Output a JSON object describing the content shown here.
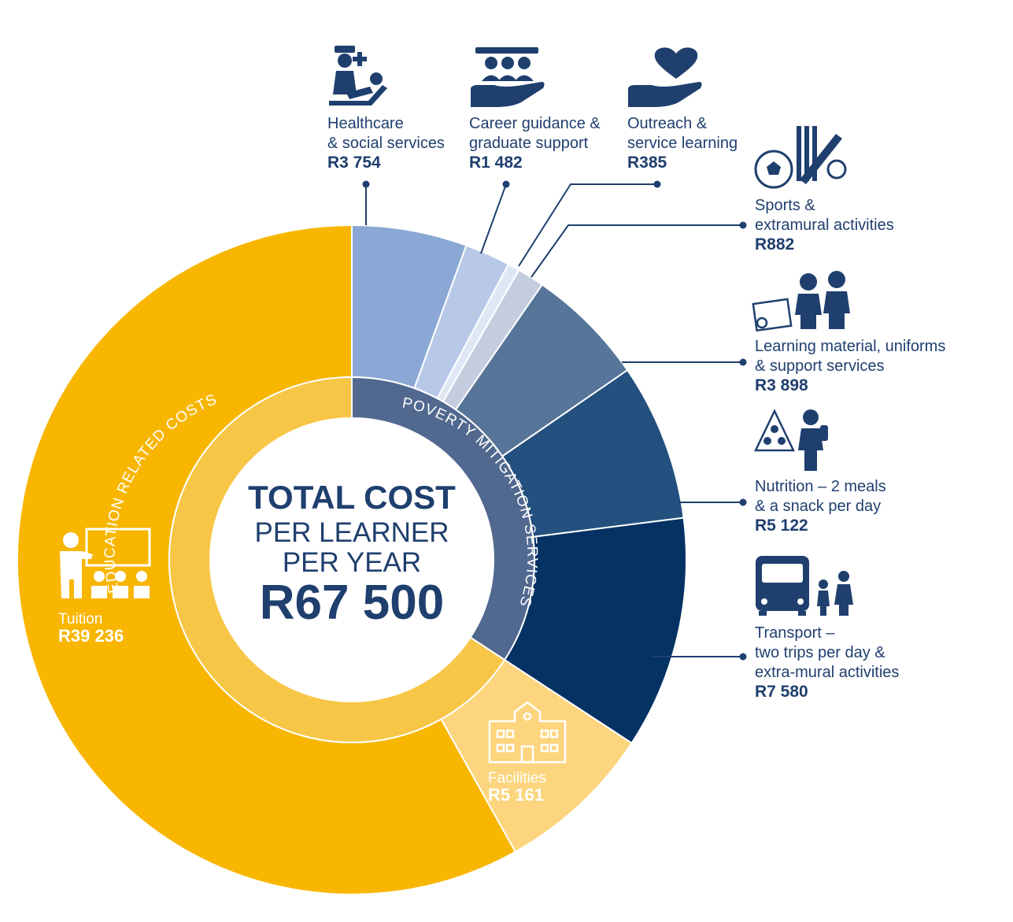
{
  "chart_data": {
    "type": "pie",
    "center": {
      "line1": "TOTAL COST",
      "line2": "PER LEARNER",
      "line3": "PER YEAR",
      "total": "R67 500"
    },
    "groups": [
      {
        "name": "EDUCATION RELATED COSTS",
        "color": "#f8c646",
        "segments": [
          "Tuition",
          "Facilities"
        ]
      },
      {
        "name": "POVERTY MITIGATION SERVICES",
        "color": "#51688f",
        "segments": [
          "Healthcare & social services",
          "Career guidance & graduate support",
          "Outreach & service learning",
          "Sports & extramural activities",
          "Learning material, uniforms & support services",
          "Nutrition – 2 meals & a snack per day",
          "Transport – two trips per day & extra-mural activities"
        ]
      }
    ],
    "slices": [
      {
        "key": "healthcare",
        "label_lines": [
          "Healthcare",
          "& social services"
        ],
        "value_label": "R3 754",
        "value": 3754,
        "color": "#8aa7d5",
        "icon": "nurse-patient-icon"
      },
      {
        "key": "career",
        "label_lines": [
          "Career guidance &",
          "graduate support"
        ],
        "value_label": "R1 482",
        "value": 1482,
        "color": "#b8c9e8",
        "icon": "graduates-hand-icon"
      },
      {
        "key": "outreach",
        "label_lines": [
          "Outreach &",
          "service learning"
        ],
        "value_label": "R385",
        "value": 385,
        "color": "#dfe6f4",
        "icon": "heart-hand-icon"
      },
      {
        "key": "sports",
        "label_lines": [
          "Sports &",
          "extramural activities"
        ],
        "value_label": "R882",
        "value": 882,
        "color": "#c4cddd",
        "icon": "sports-icon"
      },
      {
        "key": "learning",
        "label_lines": [
          "Learning material, uniforms",
          "& support services"
        ],
        "value_label": "R3 898",
        "value": 3898,
        "color": "#567599",
        "icon": "students-uniform-icon"
      },
      {
        "key": "nutrition",
        "label_lines": [
          "Nutrition – 2 meals",
          "& a snack per day"
        ],
        "value_label": "R5 122",
        "value": 5122,
        "color": "#23507e",
        "icon": "food-pyramid-icon"
      },
      {
        "key": "transport",
        "label_lines": [
          "Transport –",
          "two trips per day &",
          "extra-mural activities"
        ],
        "value_label": "R7 580",
        "value": 7580,
        "color": "#033263",
        "icon": "school-bus-icon"
      },
      {
        "key": "facilities",
        "label_lines": [
          "Facilities"
        ],
        "value_label": "R5 161",
        "value": 5161,
        "color": "#fcd57e",
        "icon": "school-building-icon"
      },
      {
        "key": "tuition",
        "label_lines": [
          "Tuition"
        ],
        "value_label": "R39 236",
        "value": 39236,
        "color": "#f8b600",
        "icon": "teacher-class-icon"
      }
    ]
  }
}
